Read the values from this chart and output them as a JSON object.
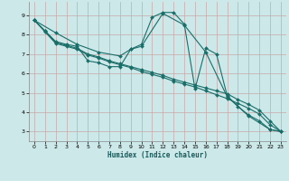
{
  "xlabel": "Humidex (Indice chaleur)",
  "bg_color": "#cce8e8",
  "grid_color": "#aad0d0",
  "line_color": "#1a6e6a",
  "xlim": [
    -0.5,
    23.5
  ],
  "ylim": [
    2.5,
    9.7
  ],
  "xticks": [
    0,
    1,
    2,
    3,
    4,
    5,
    6,
    7,
    8,
    9,
    10,
    11,
    12,
    13,
    14,
    15,
    16,
    17,
    18,
    19,
    20,
    21,
    22,
    23
  ],
  "yticks": [
    3,
    4,
    5,
    6,
    7,
    8,
    9
  ],
  "series1": [
    [
      0,
      8.75
    ],
    [
      1,
      8.2
    ],
    [
      2,
      7.65
    ],
    [
      3,
      7.5
    ],
    [
      4,
      7.4
    ],
    [
      5,
      6.65
    ],
    [
      6,
      6.55
    ],
    [
      7,
      6.35
    ],
    [
      8,
      6.35
    ],
    [
      9,
      7.25
    ],
    [
      10,
      7.5
    ],
    [
      11,
      8.9
    ],
    [
      12,
      9.15
    ],
    [
      13,
      9.15
    ],
    [
      14,
      8.55
    ],
    [
      15,
      5.2
    ],
    [
      16,
      7.3
    ],
    [
      17,
      7.0
    ],
    [
      18,
      4.85
    ],
    [
      19,
      4.3
    ],
    [
      20,
      3.85
    ],
    [
      21,
      3.55
    ],
    [
      22,
      3.1
    ],
    [
      23,
      3.0
    ]
  ],
  "series2": [
    [
      0,
      8.75
    ],
    [
      1,
      8.2
    ],
    [
      2,
      7.6
    ],
    [
      3,
      7.45
    ],
    [
      4,
      7.3
    ],
    [
      5,
      7.0
    ],
    [
      6,
      6.85
    ],
    [
      7,
      6.65
    ],
    [
      8,
      6.5
    ],
    [
      9,
      6.35
    ],
    [
      10,
      6.2
    ],
    [
      11,
      6.05
    ],
    [
      12,
      5.9
    ],
    [
      13,
      5.7
    ],
    [
      14,
      5.55
    ],
    [
      15,
      5.4
    ],
    [
      16,
      5.25
    ],
    [
      17,
      5.1
    ],
    [
      18,
      4.95
    ],
    [
      19,
      4.65
    ],
    [
      20,
      4.4
    ],
    [
      21,
      4.1
    ],
    [
      22,
      3.55
    ],
    [
      23,
      3.0
    ]
  ],
  "series3": [
    [
      0,
      8.75
    ],
    [
      1,
      8.15
    ],
    [
      2,
      7.55
    ],
    [
      3,
      7.4
    ],
    [
      4,
      7.25
    ],
    [
      5,
      6.95
    ],
    [
      6,
      6.8
    ],
    [
      7,
      6.6
    ],
    [
      8,
      6.45
    ],
    [
      9,
      6.3
    ],
    [
      10,
      6.1
    ],
    [
      11,
      5.95
    ],
    [
      12,
      5.8
    ],
    [
      13,
      5.6
    ],
    [
      14,
      5.45
    ],
    [
      15,
      5.3
    ],
    [
      16,
      5.1
    ],
    [
      17,
      4.9
    ],
    [
      18,
      4.7
    ],
    [
      19,
      4.45
    ],
    [
      20,
      4.2
    ],
    [
      21,
      3.9
    ],
    [
      22,
      3.35
    ],
    [
      23,
      3.0
    ]
  ],
  "series4": [
    [
      0,
      8.75
    ],
    [
      2,
      8.1
    ],
    [
      4,
      7.5
    ],
    [
      6,
      7.1
    ],
    [
      8,
      6.9
    ],
    [
      9,
      7.25
    ],
    [
      10,
      7.4
    ],
    [
      12,
      9.1
    ],
    [
      14,
      8.5
    ],
    [
      16,
      7.1
    ],
    [
      18,
      4.8
    ],
    [
      20,
      3.8
    ],
    [
      22,
      3.1
    ],
    [
      23,
      3.0
    ]
  ]
}
